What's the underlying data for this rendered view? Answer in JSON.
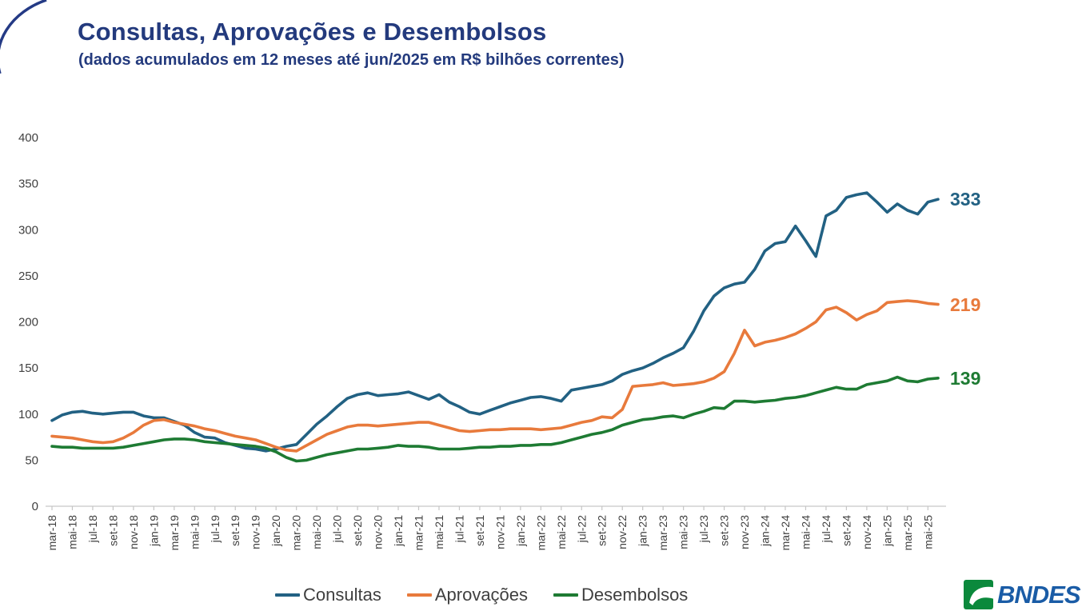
{
  "header": {
    "title": "Consultas, Aprovações e Desembolsos",
    "subtitle": "(dados acumulados em 12 meses até jun/2025 em R$ bilhões correntes)"
  },
  "chart_data": {
    "type": "line",
    "title": "Consultas, Aprovações e Desembolsos",
    "xlabel": "",
    "ylabel": "",
    "ylim": [
      0,
      400
    ],
    "y_tick_step": 50,
    "x_tick_step": 2,
    "grid": false,
    "legend_position": "bottom",
    "axis_text_color": "#404040",
    "axis_line_color": "#c6c6c6",
    "x": [
      "mar-18",
      "abr-18",
      "mai-18",
      "jun-18",
      "jul-18",
      "ago-18",
      "set-18",
      "out-18",
      "nov-18",
      "dez-18",
      "jan-19",
      "fev-19",
      "mar-19",
      "abr-19",
      "mai-19",
      "jun-19",
      "jul-19",
      "ago-19",
      "set-19",
      "out-19",
      "nov-19",
      "dez-19",
      "jan-20",
      "fev-20",
      "mar-20",
      "abr-20",
      "mai-20",
      "jun-20",
      "jul-20",
      "ago-20",
      "set-20",
      "out-20",
      "nov-20",
      "dez-20",
      "jan-21",
      "fev-21",
      "mar-21",
      "abr-21",
      "mai-21",
      "jun-21",
      "jul-21",
      "ago-21",
      "set-21",
      "out-21",
      "nov-21",
      "dez-21",
      "jan-22",
      "fev-22",
      "mar-22",
      "abr-22",
      "mai-22",
      "jun-22",
      "jul-22",
      "ago-22",
      "set-22",
      "out-22",
      "nov-22",
      "dez-22",
      "jan-23",
      "fev-23",
      "mar-23",
      "abr-23",
      "mai-23",
      "jun-23",
      "jul-23",
      "ago-23",
      "set-23",
      "out-23",
      "nov-23",
      "dez-23",
      "jan-24",
      "fev-24",
      "mar-24",
      "abr-24",
      "mai-24",
      "jun-24",
      "jul-24",
      "ago-24",
      "set-24",
      "out-24",
      "nov-24",
      "dez-24",
      "jan-25",
      "fev-25",
      "mar-25",
      "abr-25",
      "mai-25",
      "jun-25"
    ],
    "series": [
      {
        "name": "Consultas",
        "color": "#226183",
        "end_label": "333",
        "values": [
          93,
          99,
          102,
          103,
          101,
          100,
          101,
          102,
          102,
          98,
          96,
          96,
          92,
          88,
          80,
          75,
          74,
          69,
          66,
          63,
          62,
          60,
          62,
          65,
          67,
          78,
          89,
          98,
          108,
          117,
          121,
          123,
          120,
          121,
          122,
          124,
          120,
          116,
          121,
          113,
          108,
          102,
          100,
          104,
          108,
          112,
          115,
          118,
          119,
          117,
          114,
          126,
          128,
          130,
          132,
          136,
          143,
          147,
          150,
          155,
          161,
          166,
          172,
          190,
          212,
          228,
          237,
          241,
          243,
          257,
          277,
          285,
          287,
          304,
          288,
          271,
          315,
          321,
          335,
          338,
          340,
          330,
          319,
          328,
          321,
          317,
          330,
          333
        ]
      },
      {
        "name": "Aprovações",
        "color": "#e87a3c",
        "end_label": "219",
        "values": [
          76,
          75,
          74,
          72,
          70,
          69,
          70,
          74,
          80,
          88,
          93,
          94,
          91,
          89,
          87,
          84,
          82,
          79,
          76,
          74,
          72,
          68,
          64,
          61,
          60,
          66,
          72,
          78,
          82,
          86,
          88,
          88,
          87,
          88,
          89,
          90,
          91,
          91,
          88,
          85,
          82,
          81,
          82,
          83,
          83,
          84,
          84,
          84,
          83,
          84,
          85,
          88,
          91,
          93,
          97,
          96,
          105,
          130,
          131,
          132,
          134,
          131,
          132,
          133,
          135,
          139,
          146,
          166,
          191,
          174,
          178,
          180,
          183,
          187,
          193,
          200,
          213,
          216,
          210,
          202,
          208,
          212,
          221,
          222,
          223,
          222,
          220,
          219
        ]
      },
      {
        "name": "Desembolsos",
        "color": "#1e7b33",
        "end_label": "139",
        "values": [
          65,
          64,
          64,
          63,
          63,
          63,
          63,
          64,
          66,
          68,
          70,
          72,
          73,
          73,
          72,
          70,
          69,
          68,
          67,
          66,
          65,
          63,
          59,
          53,
          49,
          50,
          53,
          56,
          58,
          60,
          62,
          62,
          63,
          64,
          66,
          65,
          65,
          64,
          62,
          62,
          62,
          63,
          64,
          64,
          65,
          65,
          66,
          66,
          67,
          67,
          69,
          72,
          75,
          78,
          80,
          83,
          88,
          91,
          94,
          95,
          97,
          98,
          96,
          100,
          103,
          107,
          106,
          114,
          114,
          113,
          114,
          115,
          117,
          118,
          120,
          123,
          126,
          129,
          127,
          127,
          132,
          134,
          136,
          140,
          136,
          135,
          138,
          139
        ]
      }
    ]
  },
  "logo": {
    "text": "BNDES",
    "square_color": "#0b893c",
    "text_color": "#1a5ca6"
  },
  "decor": {
    "arc_color": "#243a85"
  }
}
